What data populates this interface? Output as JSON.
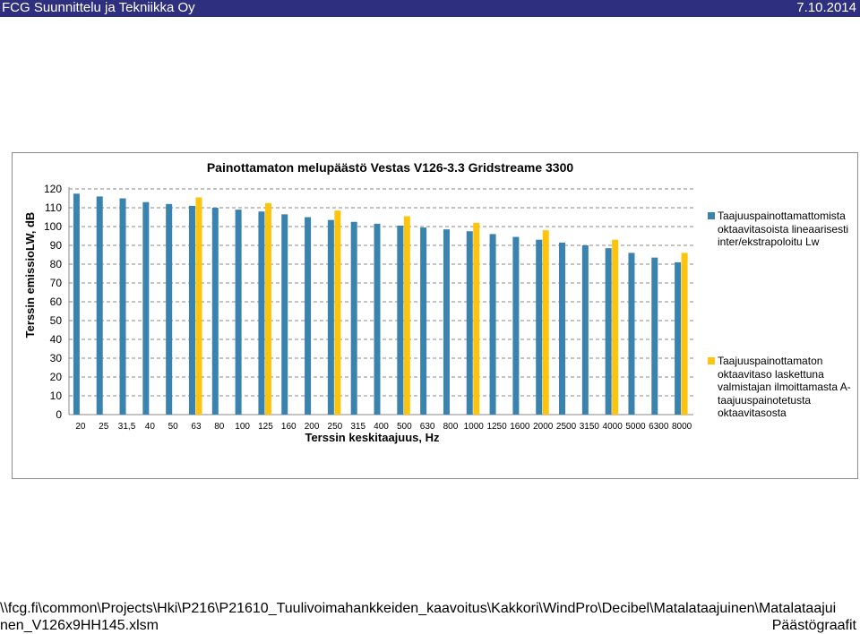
{
  "header": {
    "company": "FCG Suunnittelu ja Tekniikka Oy",
    "date": "7.10.2014"
  },
  "footer": {
    "path_line1": "\\\\fcg.fi\\common\\Projects\\Hki\\P216\\P21610_Tuulivoimahankkeiden_kaavoitus\\Kakkori\\WindPro\\Decibel\\Matalataajuinen\\Matalataajui",
    "path_line2": "nen_V126x9HH145.xlsm",
    "sheet": "Päästögraafit"
  },
  "chart_data": {
    "type": "bar",
    "title": "Painottamaton melupäästö Vestas V126-3.3 Gridstreame 3300",
    "xlabel": "Terssin keskitaajuus, Hz",
    "ylabel": "Terssin emissioLW, dB",
    "ylim": [
      0,
      120
    ],
    "yticks": [
      0,
      10,
      20,
      30,
      40,
      50,
      60,
      70,
      80,
      90,
      100,
      110,
      120
    ],
    "grid": "horizontal dashed",
    "legend_position": "right",
    "categories": [
      "20",
      "25",
      "31,5",
      "40",
      "50",
      "63",
      "80",
      "100",
      "125",
      "160",
      "200",
      "250",
      "315",
      "400",
      "500",
      "630",
      "800",
      "1000",
      "1250",
      "1600",
      "2000",
      "2500",
      "3150",
      "4000",
      "5000",
      "6300",
      "8000"
    ],
    "series": [
      {
        "name": "Taajuuspainottamattomista oktaavitasoista lineaarisesti inter/ekstrapoloitu Lw",
        "color": "#3a83ae",
        "values": [
          117.5,
          116,
          115,
          113,
          112,
          111,
          110,
          109,
          108,
          106.5,
          105,
          103.5,
          102.5,
          101.5,
          100.5,
          99.5,
          98.5,
          97.5,
          96,
          94.5,
          93,
          91.5,
          90,
          88.5,
          86,
          83.5,
          81
        ]
      },
      {
        "name": "Taajuuspainottamaton oktaavitaso laskettuna valmistajan ilmoittamasta A-taajuuspainotetusta oktaavitasosta",
        "color": "#fcc40c",
        "values": [
          null,
          null,
          null,
          null,
          null,
          115.5,
          null,
          null,
          112.5,
          null,
          null,
          108.5,
          null,
          null,
          105.5,
          null,
          null,
          102,
          null,
          null,
          98,
          null,
          null,
          93,
          null,
          null,
          86
        ]
      }
    ]
  }
}
